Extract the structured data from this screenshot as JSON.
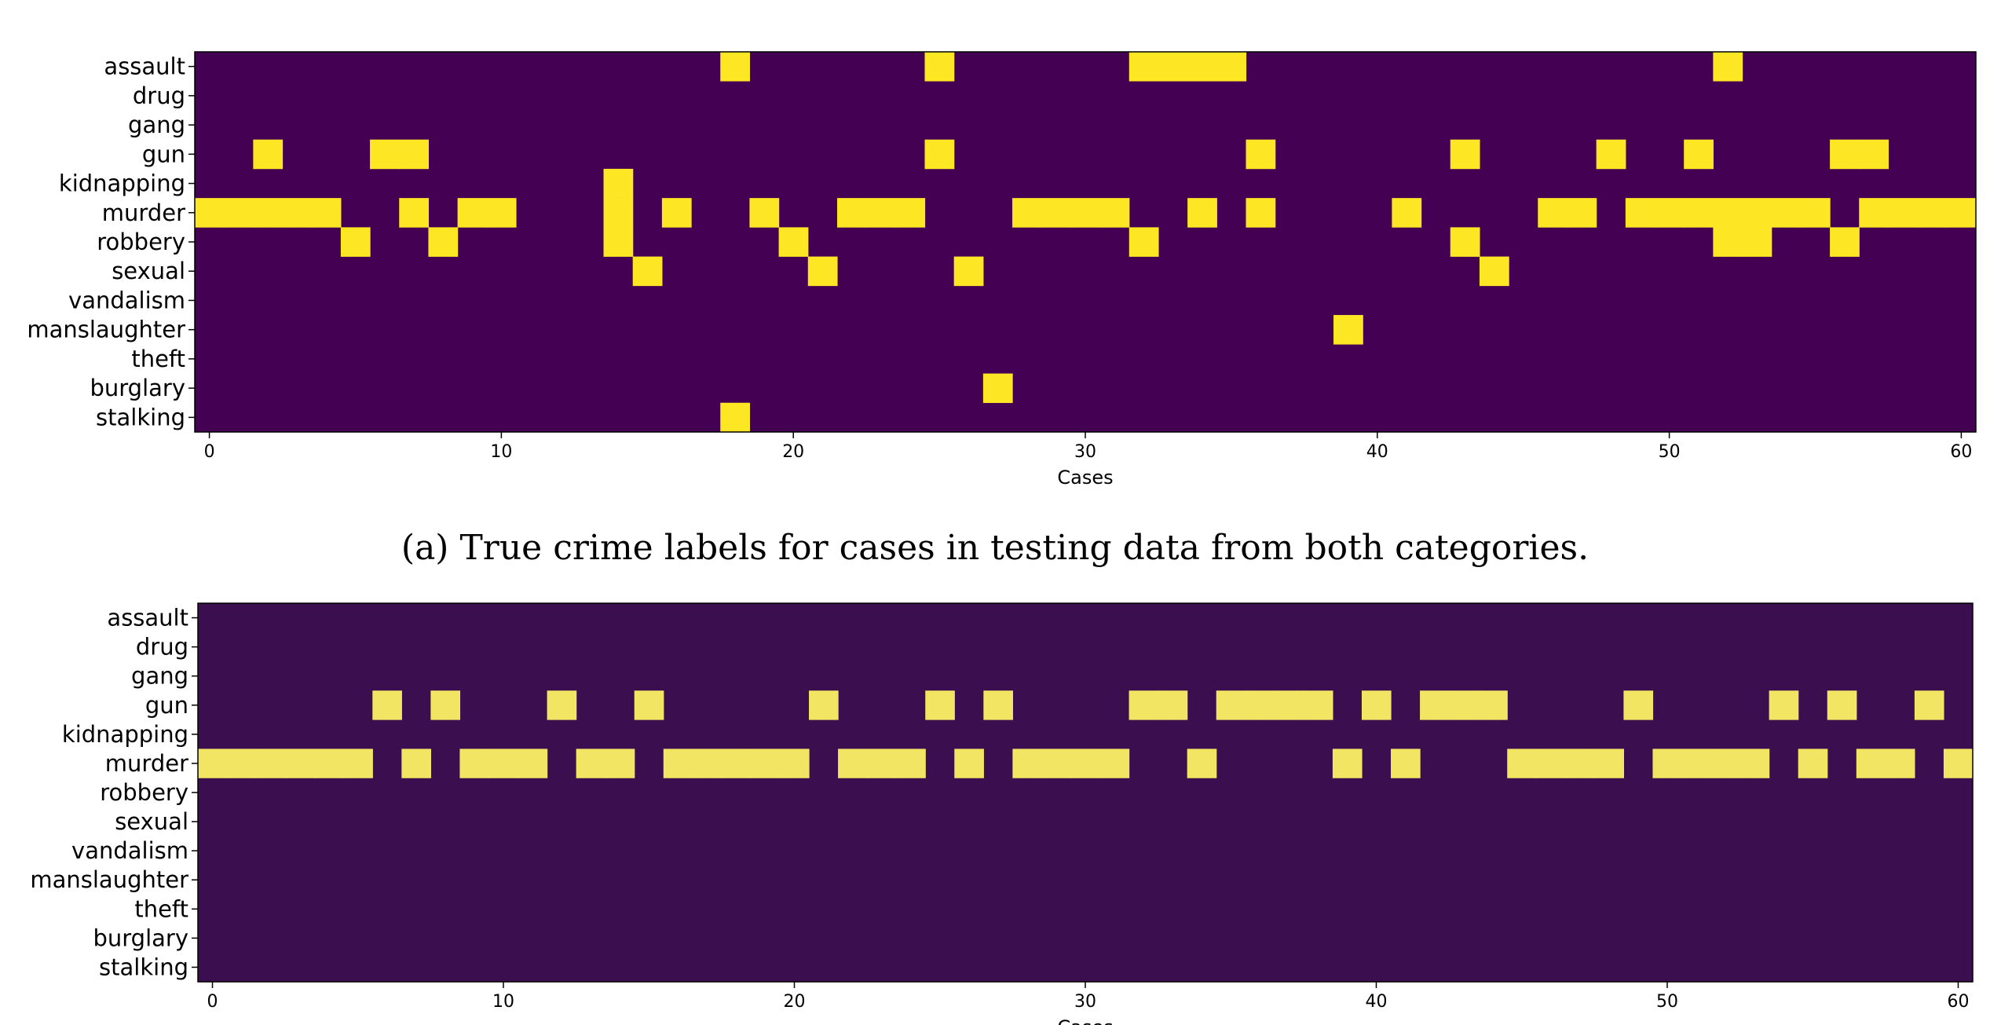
{
  "caption_a": "(a) True crime labels for cases in testing data from both categories.",
  "chart_data": [
    {
      "type": "heatmap",
      "title": "",
      "xlabel": "Cases",
      "ylabel": "",
      "rows": [
        "assault",
        "drug",
        "gang",
        "gun",
        "kidnapping",
        "murder",
        "robbery",
        "sexual",
        "vandalism",
        "manslaughter",
        "theft",
        "burglary",
        "stalking"
      ],
      "xlim": [
        -0.5,
        60.5
      ],
      "xticks": [
        0,
        10,
        20,
        30,
        40,
        50,
        60
      ],
      "grid": false,
      "colors": {
        "off": "#440154",
        "on": "#fde725"
      },
      "active_cells": {
        "assault": [
          18,
          25,
          32,
          33,
          34,
          35,
          52
        ],
        "drug": [],
        "gang": [],
        "gun": [
          2,
          6,
          7,
          25,
          36,
          43,
          48,
          51,
          56,
          57
        ],
        "kidnapping": [
          14
        ],
        "murder": [
          0,
          1,
          2,
          3,
          4,
          7,
          9,
          10,
          14,
          16,
          19,
          22,
          23,
          24,
          28,
          29,
          30,
          31,
          34,
          36,
          41,
          46,
          47,
          49,
          50,
          51,
          52,
          53,
          54,
          55,
          57,
          58,
          59,
          60
        ],
        "robbery": [
          5,
          8,
          14,
          20,
          32,
          43,
          52,
          53,
          56
        ],
        "sexual": [
          15,
          21,
          26,
          44
        ],
        "vandalism": [],
        "manslaughter": [
          39
        ],
        "theft": [],
        "burglary": [
          27
        ],
        "stalking": [
          18
        ]
      }
    },
    {
      "type": "heatmap",
      "title": "",
      "xlabel": "Cases",
      "ylabel": "",
      "rows": [
        "assault",
        "drug",
        "gang",
        "gun",
        "kidnapping",
        "murder",
        "robbery",
        "sexual",
        "vandalism",
        "manslaughter",
        "theft",
        "burglary",
        "stalking"
      ],
      "xlim": [
        -0.5,
        60.5
      ],
      "xticks": [
        0,
        10,
        20,
        30,
        40,
        50,
        60
      ],
      "grid": false,
      "colors": {
        "off": "#3b0f4f",
        "on": "#f3e564"
      },
      "active_cells": {
        "assault": [],
        "drug": [],
        "gang": [],
        "gun": [
          6,
          8,
          12,
          15,
          21,
          25,
          27,
          32,
          33,
          35,
          36,
          37,
          38,
          40,
          42,
          43,
          44,
          49,
          54,
          56,
          59
        ],
        "kidnapping": [],
        "murder": [
          0,
          1,
          2,
          3,
          4,
          5,
          7,
          9,
          10,
          11,
          13,
          14,
          16,
          17,
          18,
          19,
          20,
          22,
          23,
          24,
          26,
          28,
          29,
          30,
          31,
          34,
          39,
          41,
          45,
          46,
          47,
          48,
          50,
          51,
          52,
          53,
          55,
          57,
          58,
          60
        ],
        "robbery": [],
        "sexual": [],
        "vandalism": [],
        "manslaughter": [],
        "theft": [],
        "burglary": [],
        "stalking": []
      }
    }
  ]
}
